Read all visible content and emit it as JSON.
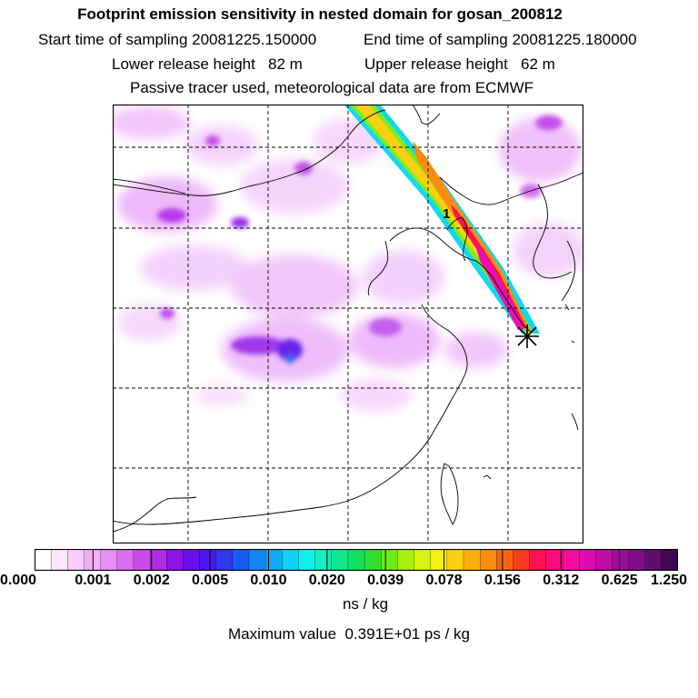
{
  "header": {
    "title": "Footprint emission sensitivity in nested domain for gosan_200812",
    "start_label": "Start time of sampling 20081225.150000",
    "end_label": "End time of sampling 20081225.180000",
    "lower_label": "Lower release height   82 m",
    "upper_label": "Upper release height   62 m",
    "tracer_label": "Passive tracer used, meteorological data are from ECMWF"
  },
  "map": {
    "marker_label": "1",
    "receptor_symbol": "receptor-star"
  },
  "colorbar": {
    "ticks": [
      "0.000",
      "0.001",
      "0.002",
      "0.005",
      "0.010",
      "0.020",
      "0.039",
      "0.078",
      "0.156",
      "0.312",
      "0.625",
      "1.250"
    ],
    "colors": [
      "#ffffff",
      "#fde6ff",
      "#f8ccfb",
      "#f3b2f7",
      "#e690f4",
      "#d86ef0",
      "#c84be8",
      "#b02ce3",
      "#8e14e6",
      "#6a10ea",
      "#4a18ec",
      "#2f38ee",
      "#1a5cf0",
      "#1286f2",
      "#10aaf4",
      "#10d0f4",
      "#10f0e8",
      "#10f0c0",
      "#10e890",
      "#12e060",
      "#30e030",
      "#70e818",
      "#a8f010",
      "#d8f410",
      "#fbf010",
      "#fcd010",
      "#fcb010",
      "#fc8c10",
      "#fc6410",
      "#fc3c20",
      "#fc1450",
      "#fc0c7c",
      "#f40ca0",
      "#e00cb0",
      "#c00ca8",
      "#a00c98",
      "#800c88",
      "#600c70",
      "#400850"
    ],
    "unit": "ns / kg",
    "max_value": "Maximum value  0.391E+01 ps / kg"
  },
  "colors": {
    "frame": "#000000",
    "grid": "#000000"
  }
}
